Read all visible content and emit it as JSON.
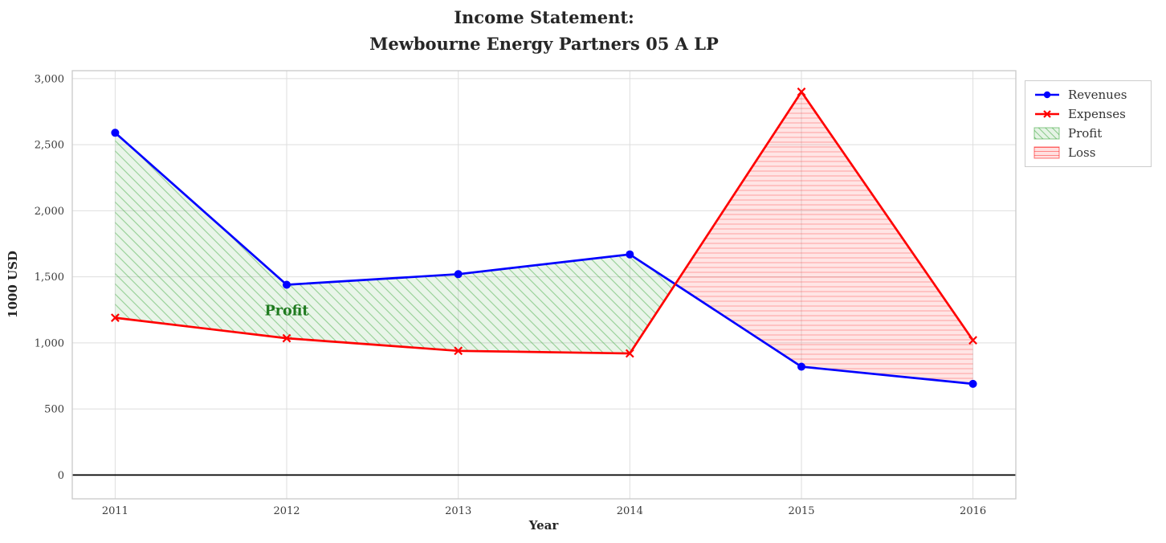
{
  "chart_data": {
    "type": "line",
    "title": "Income Statement:\nMewbourne Energy Partners 05 A LP",
    "xlabel": "Year",
    "ylabel": "1000 USD",
    "x": [
      2011,
      2012,
      2013,
      2014,
      2015,
      2016
    ],
    "xtick_labels": [
      "2011",
      "2012",
      "2013",
      "2014",
      "2015",
      "2016"
    ],
    "yticks": [
      0,
      500,
      1000,
      1500,
      2000,
      2500,
      3000
    ],
    "ytick_labels": [
      "0",
      "500",
      "1,000",
      "1,500",
      "2,000",
      "2,500",
      "3,000"
    ],
    "xlim": [
      2010.75,
      2016.25
    ],
    "ylim": [
      -180,
      3060
    ],
    "grid": true,
    "zero_line": 0,
    "legend_position": "outside-top-right",
    "series": [
      {
        "name": "Revenues",
        "color": "#0000ff",
        "marker": "circle",
        "values": [
          2590,
          1440,
          1520,
          1670,
          820,
          690
        ]
      },
      {
        "name": "Expenses",
        "color": "#ff0000",
        "marker": "x",
        "values": [
          1190,
          1035,
          940,
          920,
          2900,
          1020
        ]
      }
    ],
    "fills": [
      {
        "name": "Profit",
        "condition": "revenues>expenses",
        "color": "#2ca02c",
        "hatch": "diagonal"
      },
      {
        "name": "Loss",
        "condition": "expenses>revenues",
        "color": "#ff0000",
        "hatch": "horizontal"
      }
    ],
    "annotation": {
      "text": "Profit",
      "x": 2012,
      "y": 1245,
      "color": "#1f7a1f"
    }
  }
}
